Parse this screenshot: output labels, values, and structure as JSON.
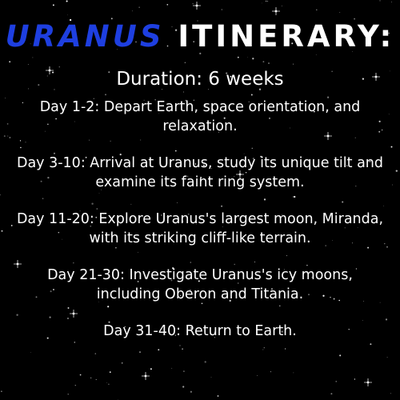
{
  "title": {
    "accent_text": "URANUS",
    "rest_text": " ITINERARY:"
  },
  "duration": "Duration: 6 weeks",
  "itinerary": [
    "Day 1-2: Depart Earth, space orientation, and relaxation.",
    "Day 3-10: Arrival at Uranus, study its unique tilt and examine its faint ring system.",
    "Day 11-20: Explore Uranus's largest moon, Miranda, with its striking cliff-like terrain.",
    "Day 21-30: Investigate Uranus's icy moons, including Oberon and Titania.",
    "Day 31-40: Return to Earth."
  ],
  "colors": {
    "background": "#000000",
    "accent": "#1e3fe0",
    "text": "#ffffff"
  }
}
